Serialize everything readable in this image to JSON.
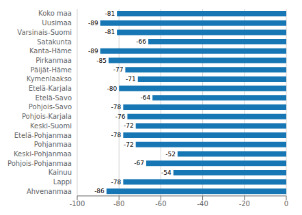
{
  "chart_data": {
    "type": "bar",
    "orientation": "horizontal",
    "categories": [
      "Koko maa",
      "Uusimaa",
      "Varsinais-Suomi",
      "Satakunta",
      "Kanta-Häme",
      "Pirkanmaa",
      "Päijät-Häme",
      "Kymenlaakso",
      "Etelä-Karjala",
      "Etelä-Savo",
      "Pohjois-Savo",
      "Pohjois-Karjala",
      "Keski-Suomi",
      "Etelä-Pohjanmaa",
      "Pohjanmaa",
      "Keski-Pohjanmaa",
      "Pohjois-Pohjanmaa",
      "Kainuu",
      "Lappi",
      "Ahvenanmaa"
    ],
    "values": [
      -81,
      -89,
      -81,
      -66,
      -89,
      -85,
      -77,
      -71,
      -80,
      -64,
      -78,
      -76,
      -72,
      -78,
      -72,
      -52,
      -67,
      -54,
      -78,
      -86
    ],
    "color": "#1777B4",
    "xlim": [
      -100,
      0
    ],
    "xticks": [
      -100,
      -80,
      -60,
      -40,
      -20,
      0
    ],
    "grid": true,
    "data_labels": true
  }
}
